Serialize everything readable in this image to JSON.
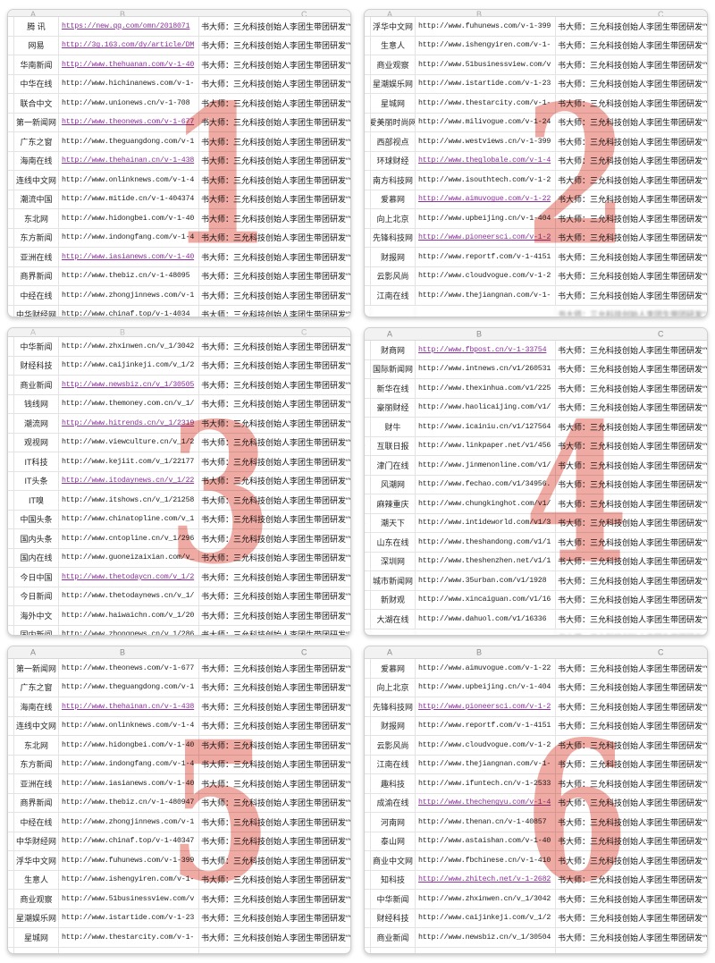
{
  "shared": {
    "desc_text": "书大师：三允科技创始人李团生带团研发“YERP产供销协作平",
    "col_headers": [
      "A",
      "B",
      "C"
    ]
  },
  "colors": {
    "link": "#8b2f9c",
    "text": "#1f1f1f",
    "gridline": "#e3e3e3",
    "watermark_red": "#e05647",
    "header_bg": "#f2f2f2",
    "header_text": "#8b8b8b"
  },
  "panels": [
    {
      "number": "1",
      "header_style": "sliver",
      "rows": [
        {
          "name": "腾 讯",
          "url": "https://new.qq.com/omn/2018071",
          "link": true
        },
        {
          "name": "网易",
          "url": "http://3g.163.com/dy/article/DM",
          "link": true
        },
        {
          "name": "华南新闻",
          "url": "http://www.thehuanan.com/v-1-40",
          "link": true
        },
        {
          "name": "中华在线",
          "url": "http://www.hichinanews.com/v-1-",
          "link": false
        },
        {
          "name": "联合中文",
          "url": "http://www.unionews.cn/v-1-708",
          "link": false
        },
        {
          "name": "第一新闻网",
          "url": "http://www.theonews.com/v-1-677",
          "link": true
        },
        {
          "name": "广东之窗",
          "url": "http://www.theguangdong.com/v-1",
          "link": false
        },
        {
          "name": "海南在线",
          "url": "http://www.thehainan.cn/v-1-438",
          "link": true
        },
        {
          "name": "连线中文网",
          "url": "http://www.onlinknews.com/v-1-4",
          "link": false
        },
        {
          "name": "潮流中国",
          "url": "http://www.mitide.cn/v-1-404374",
          "link": false
        },
        {
          "name": "东北网",
          "url": "http://www.hidongbei.com/v-1-40",
          "link": false
        },
        {
          "name": "东方新闻",
          "url": "http://www.indongfang.com/v-1-4",
          "link": false
        },
        {
          "name": "亚洲在线",
          "url": "http://www.iasianews.com/v-1-40",
          "link": true
        },
        {
          "name": "商界新闻",
          "url": "http://www.thebiz.cn/v-1-48095",
          "link": false
        },
        {
          "name": "中经在线",
          "url": "http://www.zhongjinnews.com/v-1",
          "link": false
        }
      ],
      "partial_row": {
        "name": "中华财经网",
        "url": "http://www.chinaf.top/v-1-4034",
        "link": false
      }
    },
    {
      "number": "2",
      "header_style": "sliver",
      "rows": [
        {
          "name": "浮华中文网",
          "url": "http://www.fuhunews.com/v-1-399",
          "link": false
        },
        {
          "name": "生意人",
          "url": "http://www.ishengyiren.com/v-1-",
          "link": false
        },
        {
          "name": "商业观察",
          "url": "http://www.51businessview.com/v",
          "link": false
        },
        {
          "name": "星潮娱乐网",
          "url": "http://www.istartide.com/v-1-23",
          "link": false
        },
        {
          "name": "星城网",
          "url": "http://www.thestarcity.com/v-1-",
          "link": false
        },
        {
          "name": "爱美丽时尚网",
          "url": "http://www.milivogue.com/v-1-24",
          "link": false
        },
        {
          "name": "西部视点",
          "url": "http://www.westviews.cn/v-1-399",
          "link": false
        },
        {
          "name": "环球财经",
          "url": "http://www.theglobale.com/v-1-4",
          "link": true
        },
        {
          "name": "南方科技网",
          "url": "http://www.isouthtech.com/v-1-2",
          "link": false
        },
        {
          "name": "爱慕网",
          "url": "http://www.aimuvogue.com/v-1-22",
          "link": true
        },
        {
          "name": "向上北京",
          "url": "http://www.upbeijing.cn/v-1-404",
          "link": false
        },
        {
          "name": "先锋科技网",
          "url": "http://www.pioneersci.com/v-1-2",
          "link": true
        },
        {
          "name": "财报网",
          "url": "http://www.reportf.com/v-1-4151",
          "link": false
        },
        {
          "name": "云影风尚",
          "url": "http://www.cloudvogue.com/v-1-2",
          "link": false
        },
        {
          "name": "江南在线",
          "url": "http://www.thejiangnan.com/v-1-",
          "link": false
        }
      ],
      "partial_row": {
        "name": "",
        "url": "",
        "link": false,
        "blurred": true
      }
    },
    {
      "number": "3",
      "header_style": "faint",
      "rows": [
        {
          "name": "中华新闻",
          "url": "http://www.zhxinwen.cn/v_1/3042",
          "link": false
        },
        {
          "name": "财经科技",
          "url": "http://www.caijinkeji.com/v_1/2",
          "link": false
        },
        {
          "name": "商业新闻",
          "url": "http://www.newsbiz.cn/v_1/30505",
          "link": true
        },
        {
          "name": "钱线网",
          "url": "http://www.themoney.com.cn/v_1/",
          "link": false
        },
        {
          "name": "潮流网",
          "url": "http://www.hitrends.cn/v_1/2319",
          "link": true
        },
        {
          "name": "观视网",
          "url": "http://www.viewculture.cn/v_1/2",
          "link": false
        },
        {
          "name": "IT科技",
          "url": "http://www.kejiit.com/v_1/22177",
          "link": false
        },
        {
          "name": "IT头条",
          "url": "http://www.itodaynews.cn/v_1/22",
          "link": true
        },
        {
          "name": "IT嗅",
          "url": "http://www.itshows.cn/v_1/21258",
          "link": false
        },
        {
          "name": "中国头条",
          "url": "http://www.chinatopline.com/v_1",
          "link": false
        },
        {
          "name": "国内头条",
          "url": "http://www.cntopline.cn/v_1/296",
          "link": false
        },
        {
          "name": "国内在线",
          "url": "http://www.guoneizaixian.com/v_",
          "link": false
        },
        {
          "name": "今日中国",
          "url": "http://www.thetodaycn.com/v_1/2",
          "link": true
        },
        {
          "name": "今日新闻",
          "url": "http://www.thetodaynews.cn/v_1/",
          "link": false
        },
        {
          "name": "海外中文",
          "url": "http://www.haiwaichn.com/v_1/20",
          "link": false
        }
      ],
      "partial_row": {
        "name": "国内新闻",
        "url": "http://www.zhongnews.cn/v_1/286",
        "link": false
      }
    },
    {
      "number": "4",
      "header_style": "full",
      "row_numbers": [
        "5",
        "6",
        "7",
        "8",
        "9",
        "0",
        "1",
        "2",
        "3",
        "4",
        "5",
        "6",
        "7",
        "8",
        "9"
      ],
      "rows": [
        {
          "name": "财商网",
          "url": "http://www.fbpost.cn/v-1-33754",
          "link": true
        },
        {
          "name": "国际新闻网",
          "url": "http://www.intnews.cn/v1/260531",
          "link": false
        },
        {
          "name": "新华在线",
          "url": "http://www.thexinhua.com/v1/225",
          "link": false
        },
        {
          "name": "豪丽财经",
          "url": "http://www.haolicaijing.com/v1/",
          "link": false
        },
        {
          "name": "财牛",
          "url": "http://www.icainiu.cn/v1/127564",
          "link": false
        },
        {
          "name": "互联日报",
          "url": "http://www.linkpaper.net/v1/456",
          "link": false
        },
        {
          "name": "津门在线",
          "url": "http://www.jinmenonline.com/v1/",
          "link": false
        },
        {
          "name": "风潮网",
          "url": "http://www.fechao.com/v1/34956.",
          "link": false
        },
        {
          "name": "麻辣重庆",
          "url": "http://www.chungkinghot.com/v1/",
          "link": false
        },
        {
          "name": "潮天下",
          "url": "http://www.intideworld.com/v1/3",
          "link": false
        },
        {
          "name": "山东在线",
          "url": "http://www.theshandong.com/v1/1",
          "link": false
        },
        {
          "name": "深圳网",
          "url": "http://www.theshenzhen.net/v1/1",
          "link": false
        },
        {
          "name": "城市新闻网",
          "url": "http://www.35urban.com/v1/1928",
          "link": false
        },
        {
          "name": "新财观",
          "url": "http://www.xincaiguan.com/v1/16",
          "link": false
        },
        {
          "name": "大湖在线",
          "url": "http://www.dahuol.com/v1/16336",
          "link": false
        }
      ],
      "partial_row": {
        "name": "",
        "url": "",
        "link": false,
        "blurred": true
      }
    },
    {
      "number": "5",
      "header_style": "full",
      "rows": [
        {
          "name": "第一新闻网",
          "url": "http://www.theonews.com/v-1-677",
          "link": false
        },
        {
          "name": "广东之窗",
          "url": "http://www.theguangdong.com/v-1",
          "link": false
        },
        {
          "name": "海南在线",
          "url": "http://www.thehainan.cn/v-1-438",
          "link": true
        },
        {
          "name": "连线中文网",
          "url": "http://www.onlinknews.com/v-1-4",
          "link": false
        },
        {
          "name": "东北网",
          "url": "http://www.hidongbei.com/v-1-40",
          "link": false
        },
        {
          "name": "东方新闻",
          "url": "http://www.indongfang.com/v-1-4",
          "link": false
        },
        {
          "name": "亚洲在线",
          "url": "http://www.iasianews.com/v-1-40",
          "link": false
        },
        {
          "name": "商界新闻",
          "url": "http://www.thebiz.cn/v-1-480947",
          "link": false
        },
        {
          "name": "中经在线",
          "url": "http://www.zhongjinnews.com/v-1",
          "link": false
        },
        {
          "name": "中华财经网",
          "url": "http://www.chinaf.top/v-1-40347",
          "link": false
        },
        {
          "name": "浮华中文网",
          "url": "http://www.fuhunews.com/v-1-399",
          "link": false
        },
        {
          "name": "生意人",
          "url": "http://www.ishengyiren.com/v-1-",
          "link": false
        },
        {
          "name": "商业观察",
          "url": "http://www.51businessview.com/v",
          "link": false
        },
        {
          "name": "星潮娱乐网",
          "url": "http://www.istartide.com/v-1-23",
          "link": false
        },
        {
          "name": "星城网",
          "url": "http://www.thestarcity.com/v-1-",
          "link": false
        }
      ],
      "partial_row": {
        "name": "",
        "url": "",
        "link": false,
        "desc": ""
      }
    },
    {
      "number": "6",
      "header_style": "full",
      "rows": [
        {
          "name": "爱慕网",
          "url": "http://www.aimuvogue.com/v-1-22",
          "link": false
        },
        {
          "name": "向上北京",
          "url": "http://www.upbeijing.cn/v-1-404",
          "link": false
        },
        {
          "name": "先锋科技网",
          "url": "http://www.pioneersci.com/v-1-2",
          "link": true
        },
        {
          "name": "财报网",
          "url": "http://www.reportf.com/v-1-4151",
          "link": false
        },
        {
          "name": "云影风尚",
          "url": "http://www.cloudvogue.com/v-1-2",
          "link": false
        },
        {
          "name": "江南在线",
          "url": "http://www.thejiangnan.com/v-1-",
          "link": false
        },
        {
          "name": "趣科技",
          "url": "http://www.ifuntech.cn/v-1-2533",
          "link": false
        },
        {
          "name": "成渝在线",
          "url": "http://www.thechengyu.com/v-1-4",
          "link": true
        },
        {
          "name": "河南网",
          "url": "http://www.thenan.cn/v-1-40857",
          "link": false
        },
        {
          "name": "泰山网",
          "url": "http://www.astaishan.com/v-1-40",
          "link": false
        },
        {
          "name": "商业中文网",
          "url": "http://www.fbchinese.cn/v-1-410",
          "link": false
        },
        {
          "name": "知科技",
          "url": "http://www.zhitech.net/v-1-2682",
          "link": true
        },
        {
          "name": "中华新闻",
          "url": "http://www.zhxinwen.cn/v_1/3042",
          "link": false
        },
        {
          "name": "财经科技",
          "url": "http://www.caijinkeji.com/v_1/2",
          "link": false
        },
        {
          "name": "商业新闻",
          "url": "http://www.newsbiz.cn/v_1/30504",
          "link": false
        }
      ],
      "partial_row": {
        "name": "",
        "url": "",
        "link": false,
        "desc": ""
      }
    }
  ]
}
